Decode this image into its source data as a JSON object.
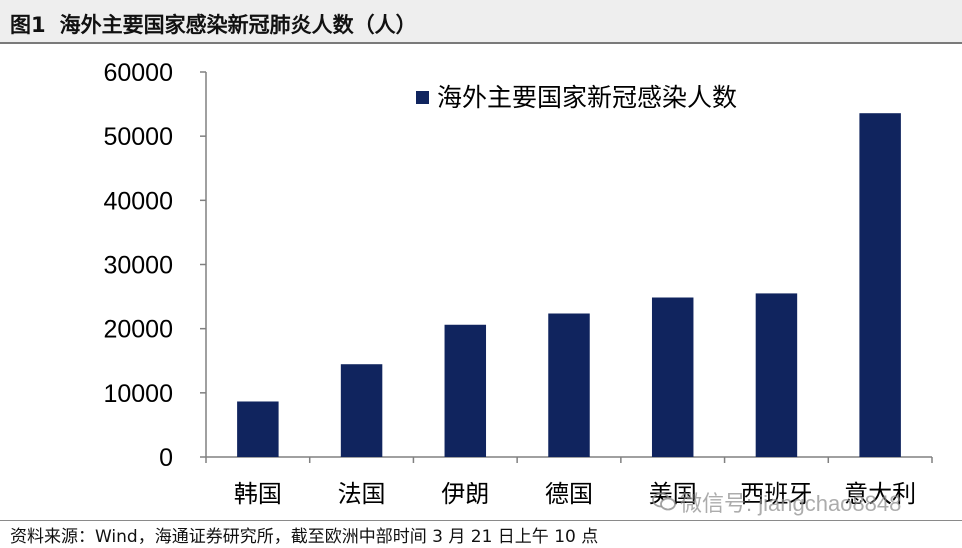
{
  "figure": {
    "label": "图1",
    "title": "海外主要国家感染新冠肺炎人数（人）"
  },
  "chart_data": {
    "type": "bar",
    "categories": [
      "韩国",
      "法国",
      "伊朗",
      "德国",
      "美国",
      "西班牙",
      "意大利"
    ],
    "series": [
      {
        "name": "海外主要国家新冠感染人数",
        "values": [
          8652,
          14459,
          20610,
          22364,
          24856,
          25496,
          53578
        ]
      }
    ],
    "ylim": [
      0,
      60000
    ],
    "yticks": [
      0,
      10000,
      20000,
      30000,
      40000,
      50000,
      60000
    ],
    "ytick_labels": [
      "0",
      "10000",
      "20000",
      "30000",
      "40000",
      "50000",
      "60000"
    ],
    "bar_color": "#10245e",
    "grid": false,
    "legend_position": "top"
  },
  "footer": {
    "source": "资料来源：Wind，海通证券研究所，截至欧洲中部时间 3 月 21 日上午 10 点"
  },
  "watermark": {
    "text": "微信号: jiangchao8848",
    "icon": "wechat-icon"
  }
}
